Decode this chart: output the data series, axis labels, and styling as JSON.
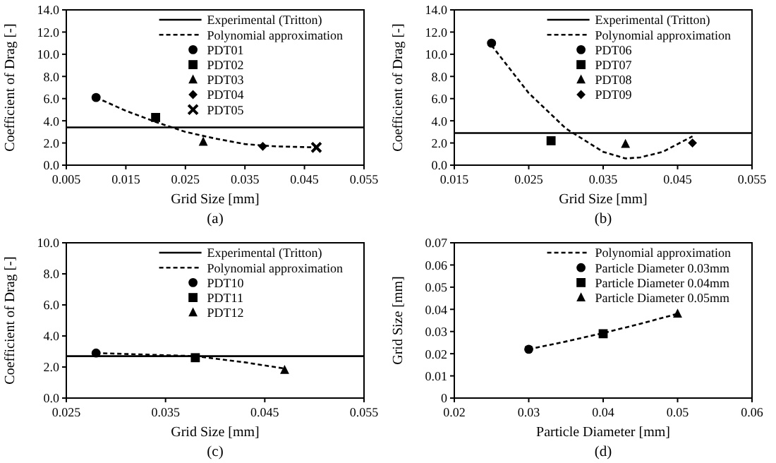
{
  "chart_data": [
    {
      "type": "scatter",
      "xlabel": "Grid Size [mm]",
      "ylabel": "Coefficient of Drag [-]",
      "annotations": [
        "(a)"
      ],
      "legend": "top right",
      "xlim": [
        0.005,
        0.055
      ],
      "xticks": [
        0.005,
        0.015,
        0.025,
        0.035,
        0.045,
        0.055
      ],
      "ylim": [
        0,
        14
      ],
      "yticks": [
        {
          "value": 0,
          "label": "0.0"
        },
        {
          "value": 2,
          "label": "2.0"
        },
        {
          "value": 4,
          "label": "4.0"
        },
        {
          "value": 6,
          "label": "6.0"
        },
        {
          "value": 8,
          "label": "8.0"
        },
        {
          "value": 10,
          "label": "10.0"
        },
        {
          "value": 12,
          "label": "12.0"
        },
        {
          "value": 14,
          "label": "14.0"
        }
      ],
      "series": [
        {
          "name": "Experimental (Tritton)",
          "type": "line",
          "line_style": "solid",
          "marker": "none",
          "color": "#000000",
          "x": [
            0.005,
            0.055
          ],
          "values": [
            3.4,
            3.4
          ]
        },
        {
          "name": "Polynomial approximation",
          "type": "line",
          "line_style": "dashed",
          "marker": "none",
          "color": "#000000",
          "x": [
            0.01,
            0.015,
            0.02,
            0.025,
            0.03,
            0.035,
            0.04,
            0.047
          ],
          "values": [
            6.1,
            4.9,
            3.9,
            3.0,
            2.4,
            1.9,
            1.7,
            1.6
          ]
        },
        {
          "name": "PDT01",
          "type": "scatter",
          "marker": "circle",
          "color": "#000000",
          "x": [
            0.01
          ],
          "values": [
            6.1
          ]
        },
        {
          "name": "PDT02",
          "type": "scatter",
          "marker": "square",
          "color": "#000000",
          "x": [
            0.02
          ],
          "values": [
            4.3
          ]
        },
        {
          "name": "PDT03",
          "type": "scatter",
          "marker": "triangle",
          "color": "#000000",
          "x": [
            0.028
          ],
          "values": [
            2.1
          ]
        },
        {
          "name": "PDT04",
          "type": "scatter",
          "marker": "diamond",
          "color": "#000000",
          "x": [
            0.038
          ],
          "values": [
            1.7
          ]
        },
        {
          "name": "PDT05",
          "type": "scatter",
          "marker": "cross",
          "color": "#000000",
          "x": [
            0.047
          ],
          "values": [
            1.6
          ]
        }
      ]
    },
    {
      "type": "scatter",
      "xlabel": "Grid Size [mm]",
      "ylabel": "Coefficient of Drag [-]",
      "annotations": [
        "(b)"
      ],
      "legend": "top right",
      "xlim": [
        0.015,
        0.055
      ],
      "xticks": [
        0.015,
        0.025,
        0.035,
        0.045,
        0.055
      ],
      "ylim": [
        0,
        14
      ],
      "yticks": [
        {
          "value": 0,
          "label": "0.0"
        },
        {
          "value": 2,
          "label": "2.0"
        },
        {
          "value": 4,
          "label": "4.0"
        },
        {
          "value": 6,
          "label": "6.0"
        },
        {
          "value": 8,
          "label": "8.0"
        },
        {
          "value": 10,
          "label": "10.0"
        },
        {
          "value": 12,
          "label": "12.0"
        },
        {
          "value": 14,
          "label": "14.0"
        }
      ],
      "series": [
        {
          "name": "Experimental (Tritton)",
          "type": "line",
          "line_style": "solid",
          "marker": "none",
          "color": "#000000",
          "x": [
            0.015,
            0.055
          ],
          "values": [
            2.9,
            2.9
          ]
        },
        {
          "name": "Polynomial approximation",
          "type": "line",
          "line_style": "dashed",
          "marker": "none",
          "color": "#000000",
          "x": [
            0.02,
            0.025,
            0.03,
            0.035,
            0.038,
            0.04,
            0.043,
            0.047
          ],
          "values": [
            10.8,
            6.5,
            3.3,
            1.2,
            0.6,
            0.7,
            1.2,
            2.6
          ]
        },
        {
          "name": "PDT06",
          "type": "scatter",
          "marker": "circle",
          "color": "#000000",
          "x": [
            0.02
          ],
          "values": [
            11.0
          ]
        },
        {
          "name": "PDT07",
          "type": "scatter",
          "marker": "square",
          "color": "#000000",
          "x": [
            0.028
          ],
          "values": [
            2.2
          ]
        },
        {
          "name": "PDT08",
          "type": "scatter",
          "marker": "triangle",
          "color": "#000000",
          "x": [
            0.038
          ],
          "values": [
            1.9
          ]
        },
        {
          "name": "PDT09",
          "type": "scatter",
          "marker": "diamond",
          "color": "#000000",
          "x": [
            0.047
          ],
          "values": [
            2.0
          ]
        }
      ]
    },
    {
      "type": "scatter",
      "xlabel": "Grid Size [mm]",
      "ylabel": "Coefficient of Drag [-]",
      "annotations": [
        "(c)"
      ],
      "legend": "top right",
      "xlim": [
        0.025,
        0.055
      ],
      "xticks": [
        0.025,
        0.035,
        0.045,
        0.055
      ],
      "ylim": [
        0,
        10
      ],
      "yticks": [
        {
          "value": 0,
          "label": "0.0"
        },
        {
          "value": 2,
          "label": "2.0"
        },
        {
          "value": 4,
          "label": "4.0"
        },
        {
          "value": 6,
          "label": "6.0"
        },
        {
          "value": 8,
          "label": "8.0"
        },
        {
          "value": 10,
          "label": "10.0"
        }
      ],
      "series": [
        {
          "name": "Experimental (Tritton)",
          "type": "line",
          "line_style": "solid",
          "marker": "none",
          "color": "#000000",
          "x": [
            0.025,
            0.055
          ],
          "values": [
            2.7,
            2.7
          ]
        },
        {
          "name": "Polynomial approximation",
          "type": "line",
          "line_style": "dashed",
          "marker": "none",
          "color": "#000000",
          "x": [
            0.028,
            0.033,
            0.038,
            0.043,
            0.047
          ],
          "values": [
            2.9,
            2.8,
            2.7,
            2.3,
            1.9
          ]
        },
        {
          "name": "PDT10",
          "type": "scatter",
          "marker": "circle",
          "color": "#000000",
          "x": [
            0.028
          ],
          "values": [
            2.9
          ]
        },
        {
          "name": "PDT11",
          "type": "scatter",
          "marker": "square",
          "color": "#000000",
          "x": [
            0.038
          ],
          "values": [
            2.6
          ]
        },
        {
          "name": "PDT12",
          "type": "scatter",
          "marker": "triangle",
          "color": "#000000",
          "x": [
            0.047
          ],
          "values": [
            1.8
          ]
        }
      ]
    },
    {
      "type": "scatter",
      "xlabel": "Particle Diameter [mm]",
      "ylabel": "Grid Size [mm]",
      "annotations": [
        "(d)"
      ],
      "legend": "top right",
      "xlim": [
        0.02,
        0.06
      ],
      "xticks": [
        0.02,
        0.03,
        0.04,
        0.05,
        0.06
      ],
      "ylim": [
        0,
        0.07
      ],
      "yticks": [
        0,
        0.01,
        0.02,
        0.03,
        0.04,
        0.05,
        0.06,
        0.07
      ],
      "series": [
        {
          "name": "Polynomial approximation",
          "type": "line",
          "line_style": "dashed",
          "marker": "none",
          "color": "#000000",
          "x": [
            0.03,
            0.035,
            0.04,
            0.045,
            0.05
          ],
          "values": [
            0.022,
            0.0255,
            0.0293,
            0.0335,
            0.038
          ]
        },
        {
          "name": "Particle Diameter 0.03mm",
          "type": "scatter",
          "marker": "circle",
          "color": "#000000",
          "x": [
            0.03
          ],
          "values": [
            0.022
          ]
        },
        {
          "name": "Particle Diameter 0.04mm",
          "type": "scatter",
          "marker": "square",
          "color": "#000000",
          "x": [
            0.04
          ],
          "values": [
            0.029
          ]
        },
        {
          "name": "Particle Diameter 0.05mm",
          "type": "scatter",
          "marker": "triangle",
          "color": "#000000",
          "x": [
            0.05
          ],
          "values": [
            0.038
          ]
        }
      ]
    }
  ]
}
